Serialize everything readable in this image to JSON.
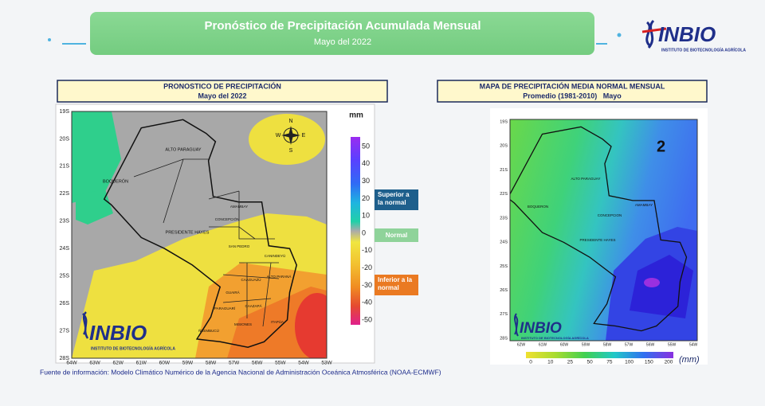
{
  "header": {
    "title": "Pronóstico de Precipitación Acumulada Mensual",
    "subtitle": "Mayo del 2022"
  },
  "logo": {
    "name": "INBIO",
    "tagline": "INSTITUTO DE BIOTECNOLOGÍA AGRÍCOLA"
  },
  "forecast_map": {
    "title": "PRONOSTICO DE PRECIPITACIÓN",
    "subtitle": "Mayo del 2022",
    "lat_labels": [
      "19S",
      "20S",
      "21S",
      "22S",
      "23S",
      "24S",
      "25S",
      "26S",
      "27S",
      "28S"
    ],
    "lon_labels": [
      "64W",
      "63W",
      "62W",
      "61W",
      "60W",
      "59W",
      "58W",
      "57W",
      "56W",
      "55W",
      "54W",
      "53W"
    ],
    "regions": [
      "ALTO PARAGUAY",
      "BOQUERÓN",
      "PRESIDENTE HAYES",
      "CONCEPCIÓN",
      "AMAMBAY",
      "SAN PEDRO",
      "CANINDEYÚ",
      "CAAGUAZÚ",
      "ALTO PARANÁ",
      "GUAIRÁ",
      "PARAGUARÍ",
      "CAAZAPÁ",
      "MISIONES",
      "ÑEEMBUCÚ",
      "ITAPÚA"
    ],
    "compass": [
      "N",
      "S",
      "E",
      "W"
    ],
    "unit": "mm",
    "scale": [
      "50",
      "40",
      "30",
      "20",
      "10",
      "0",
      "-10",
      "-20",
      "-30",
      "-40",
      "-50"
    ],
    "badges": [
      "Superior a la normal",
      "Normal",
      "Inferior a la normal"
    ],
    "logo_name": "INBIO",
    "logo_tagline": "INSTITUTO DE BIOTECNOLOGÍA AGRÍCOLA"
  },
  "normal_map": {
    "title": "MAPA DE PRECIPITACIÓN MEDIA NORMAL MENSUAL",
    "subtitle": "Promedio (1981-2010)   Mayo",
    "lat_labels": [
      "19S",
      "20S",
      "21S",
      "22S",
      "23S",
      "24S",
      "25S",
      "26S",
      "27S",
      "28S"
    ],
    "lon_labels": [
      "62W",
      "61W",
      "60W",
      "59W",
      "58W",
      "57W",
      "56W",
      "55W",
      "54W"
    ],
    "regions": [
      "ALTO PARAGUAY",
      "BOQUERON",
      "CONCEPCION",
      "AMAMBAY",
      "PRESIDENTE HAYES"
    ],
    "panel_number": "2",
    "scale": [
      "0",
      "10",
      "25",
      "50",
      "75",
      "100",
      "150",
      "200"
    ],
    "unit": "(mm)",
    "logo_name": "INBIO",
    "logo_tagline": "INSTITUTO DE BIOTECNOLOGÍA AGRÍCOLA"
  },
  "source": "Fuente de información: Modelo Climático Numérico de la Agencia Nacional de Administración Oceánica  Atmosférica (NOAA-ECMWF)"
}
